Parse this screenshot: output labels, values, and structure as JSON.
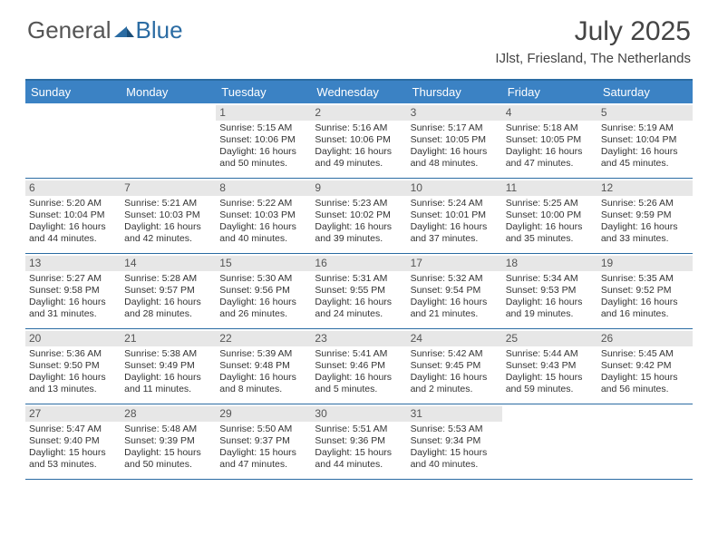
{
  "logo": {
    "text1": "General",
    "text2": "Blue"
  },
  "title": "July 2025",
  "location": "IJlst, Friesland, The Netherlands",
  "colors": {
    "header_bar": "#3b82c4",
    "border": "#2b6ca3",
    "daynum_bg": "#e7e7e7",
    "text": "#333333",
    "logo_gray": "#555555",
    "logo_blue": "#2b6ca3"
  },
  "dow": [
    "Sunday",
    "Monday",
    "Tuesday",
    "Wednesday",
    "Thursday",
    "Friday",
    "Saturday"
  ],
  "weeks": [
    [
      {
        "n": "",
        "empty": true
      },
      {
        "n": "",
        "empty": true
      },
      {
        "n": "1",
        "sr": "Sunrise: 5:15 AM",
        "ss": "Sunset: 10:06 PM",
        "dl": "Daylight: 16 hours and 50 minutes."
      },
      {
        "n": "2",
        "sr": "Sunrise: 5:16 AM",
        "ss": "Sunset: 10:06 PM",
        "dl": "Daylight: 16 hours and 49 minutes."
      },
      {
        "n": "3",
        "sr": "Sunrise: 5:17 AM",
        "ss": "Sunset: 10:05 PM",
        "dl": "Daylight: 16 hours and 48 minutes."
      },
      {
        "n": "4",
        "sr": "Sunrise: 5:18 AM",
        "ss": "Sunset: 10:05 PM",
        "dl": "Daylight: 16 hours and 47 minutes."
      },
      {
        "n": "5",
        "sr": "Sunrise: 5:19 AM",
        "ss": "Sunset: 10:04 PM",
        "dl": "Daylight: 16 hours and 45 minutes."
      }
    ],
    [
      {
        "n": "6",
        "sr": "Sunrise: 5:20 AM",
        "ss": "Sunset: 10:04 PM",
        "dl": "Daylight: 16 hours and 44 minutes."
      },
      {
        "n": "7",
        "sr": "Sunrise: 5:21 AM",
        "ss": "Sunset: 10:03 PM",
        "dl": "Daylight: 16 hours and 42 minutes."
      },
      {
        "n": "8",
        "sr": "Sunrise: 5:22 AM",
        "ss": "Sunset: 10:03 PM",
        "dl": "Daylight: 16 hours and 40 minutes."
      },
      {
        "n": "9",
        "sr": "Sunrise: 5:23 AM",
        "ss": "Sunset: 10:02 PM",
        "dl": "Daylight: 16 hours and 39 minutes."
      },
      {
        "n": "10",
        "sr": "Sunrise: 5:24 AM",
        "ss": "Sunset: 10:01 PM",
        "dl": "Daylight: 16 hours and 37 minutes."
      },
      {
        "n": "11",
        "sr": "Sunrise: 5:25 AM",
        "ss": "Sunset: 10:00 PM",
        "dl": "Daylight: 16 hours and 35 minutes."
      },
      {
        "n": "12",
        "sr": "Sunrise: 5:26 AM",
        "ss": "Sunset: 9:59 PM",
        "dl": "Daylight: 16 hours and 33 minutes."
      }
    ],
    [
      {
        "n": "13",
        "sr": "Sunrise: 5:27 AM",
        "ss": "Sunset: 9:58 PM",
        "dl": "Daylight: 16 hours and 31 minutes."
      },
      {
        "n": "14",
        "sr": "Sunrise: 5:28 AM",
        "ss": "Sunset: 9:57 PM",
        "dl": "Daylight: 16 hours and 28 minutes."
      },
      {
        "n": "15",
        "sr": "Sunrise: 5:30 AM",
        "ss": "Sunset: 9:56 PM",
        "dl": "Daylight: 16 hours and 26 minutes."
      },
      {
        "n": "16",
        "sr": "Sunrise: 5:31 AM",
        "ss": "Sunset: 9:55 PM",
        "dl": "Daylight: 16 hours and 24 minutes."
      },
      {
        "n": "17",
        "sr": "Sunrise: 5:32 AM",
        "ss": "Sunset: 9:54 PM",
        "dl": "Daylight: 16 hours and 21 minutes."
      },
      {
        "n": "18",
        "sr": "Sunrise: 5:34 AM",
        "ss": "Sunset: 9:53 PM",
        "dl": "Daylight: 16 hours and 19 minutes."
      },
      {
        "n": "19",
        "sr": "Sunrise: 5:35 AM",
        "ss": "Sunset: 9:52 PM",
        "dl": "Daylight: 16 hours and 16 minutes."
      }
    ],
    [
      {
        "n": "20",
        "sr": "Sunrise: 5:36 AM",
        "ss": "Sunset: 9:50 PM",
        "dl": "Daylight: 16 hours and 13 minutes."
      },
      {
        "n": "21",
        "sr": "Sunrise: 5:38 AM",
        "ss": "Sunset: 9:49 PM",
        "dl": "Daylight: 16 hours and 11 minutes."
      },
      {
        "n": "22",
        "sr": "Sunrise: 5:39 AM",
        "ss": "Sunset: 9:48 PM",
        "dl": "Daylight: 16 hours and 8 minutes."
      },
      {
        "n": "23",
        "sr": "Sunrise: 5:41 AM",
        "ss": "Sunset: 9:46 PM",
        "dl": "Daylight: 16 hours and 5 minutes."
      },
      {
        "n": "24",
        "sr": "Sunrise: 5:42 AM",
        "ss": "Sunset: 9:45 PM",
        "dl": "Daylight: 16 hours and 2 minutes."
      },
      {
        "n": "25",
        "sr": "Sunrise: 5:44 AM",
        "ss": "Sunset: 9:43 PM",
        "dl": "Daylight: 15 hours and 59 minutes."
      },
      {
        "n": "26",
        "sr": "Sunrise: 5:45 AM",
        "ss": "Sunset: 9:42 PM",
        "dl": "Daylight: 15 hours and 56 minutes."
      }
    ],
    [
      {
        "n": "27",
        "sr": "Sunrise: 5:47 AM",
        "ss": "Sunset: 9:40 PM",
        "dl": "Daylight: 15 hours and 53 minutes."
      },
      {
        "n": "28",
        "sr": "Sunrise: 5:48 AM",
        "ss": "Sunset: 9:39 PM",
        "dl": "Daylight: 15 hours and 50 minutes."
      },
      {
        "n": "29",
        "sr": "Sunrise: 5:50 AM",
        "ss": "Sunset: 9:37 PM",
        "dl": "Daylight: 15 hours and 47 minutes."
      },
      {
        "n": "30",
        "sr": "Sunrise: 5:51 AM",
        "ss": "Sunset: 9:36 PM",
        "dl": "Daylight: 15 hours and 44 minutes."
      },
      {
        "n": "31",
        "sr": "Sunrise: 5:53 AM",
        "ss": "Sunset: 9:34 PM",
        "dl": "Daylight: 15 hours and 40 minutes."
      },
      {
        "n": "",
        "empty": true
      },
      {
        "n": "",
        "empty": true
      }
    ]
  ]
}
